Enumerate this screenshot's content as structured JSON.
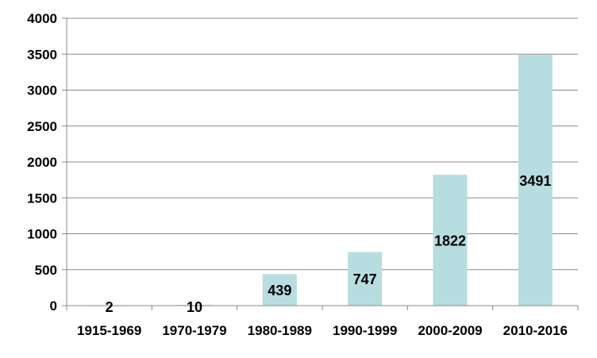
{
  "chart_data": {
    "type": "bar",
    "title": "",
    "xlabel": "",
    "ylabel": "",
    "categories": [
      "1915-1969",
      "1970-1979",
      "1980-1989",
      "1990-1999",
      "2000-2009",
      "2010-2016"
    ],
    "values": [
      2,
      10,
      439,
      747,
      1822,
      3491
    ],
    "data_labels": [
      "2",
      "10",
      "439",
      "747",
      "1822",
      "3491"
    ],
    "yticks": [
      "0",
      "500",
      "1000",
      "1500",
      "2000",
      "2500",
      "3000",
      "3500",
      "4000"
    ],
    "ylim": [
      0,
      4000
    ],
    "grid": true,
    "legend": "none",
    "colors": {
      "bar": "#b7dde0",
      "grid": "#888888",
      "axis": "#888888"
    }
  }
}
